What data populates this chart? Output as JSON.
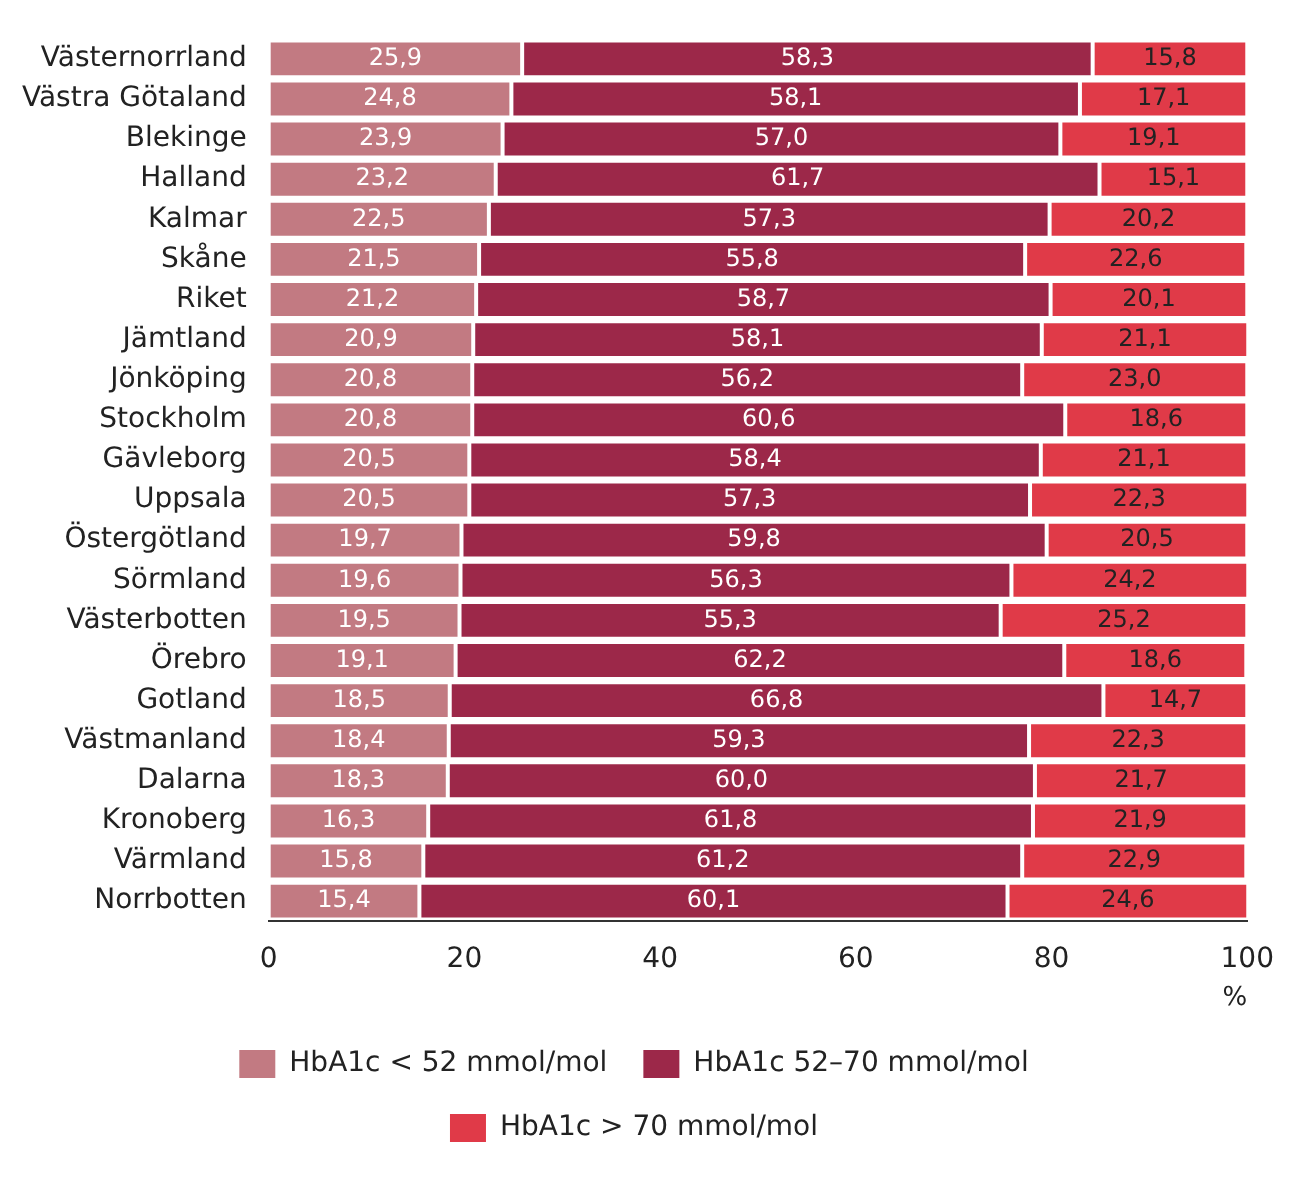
{
  "chart_data": {
    "type": "bar",
    "orientation": "horizontal",
    "stacked": true,
    "xlabel": "%",
    "categories": [
      "Västernorrland",
      "Västra Götaland",
      "Blekinge",
      "Halland",
      "Kalmar",
      "Skåne",
      "Riket",
      "Jämtland",
      "Jönköping",
      "Stockholm",
      "Gävleborg",
      "Uppsala",
      "Östergötland",
      "Sörmland",
      "Västerbotten",
      "Örebro",
      "Gotland",
      "Västmanland",
      "Dalarna",
      "Kronoberg",
      "Värmland",
      "Norrbotten"
    ],
    "series": [
      {
        "name": "HbA1c < 52 mmol/mol",
        "color": "#c27a82",
        "values": [
          25.9,
          24.8,
          23.9,
          23.2,
          22.5,
          21.5,
          21.2,
          20.9,
          20.8,
          20.8,
          20.5,
          20.5,
          19.7,
          19.6,
          19.5,
          19.1,
          18.5,
          18.4,
          18.3,
          16.3,
          15.8,
          15.4
        ],
        "value_labels": [
          "25,9",
          "24,8",
          "23,9",
          "23,2",
          "22,5",
          "21,5",
          "21,2",
          "20,9",
          "20,8",
          "20,8",
          "20,5",
          "20,5",
          "19,7",
          "19,6",
          "19,5",
          "19,1",
          "18,5",
          "18,4",
          "18,3",
          "16,3",
          "15,8",
          "15,4"
        ]
      },
      {
        "name": "HbA1c 52–70 mmol/mol",
        "color": "#9c2849",
        "values": [
          58.3,
          58.1,
          57.0,
          61.7,
          57.3,
          55.8,
          58.7,
          58.1,
          56.2,
          60.6,
          58.4,
          57.3,
          59.8,
          56.3,
          55.3,
          62.2,
          66.8,
          59.3,
          60.0,
          61.8,
          61.2,
          60.1
        ],
        "value_labels": [
          "58,3",
          "58,1",
          "57,0",
          "61,7",
          "57,3",
          "55,8",
          "58,7",
          "58,1",
          "56,2",
          "60,6",
          "58,4",
          "57,3",
          "59,8",
          "56,3",
          "55,3",
          "62,2",
          "66,8",
          "59,3",
          "60,0",
          "61,8",
          "61,2",
          "60,1"
        ]
      },
      {
        "name": "HbA1c > 70 mmol/mol",
        "color": "#e03a48",
        "values": [
          15.8,
          17.1,
          19.1,
          15.1,
          20.2,
          22.6,
          20.1,
          21.1,
          23.0,
          18.6,
          21.1,
          22.3,
          20.5,
          24.2,
          25.2,
          18.6,
          14.7,
          22.3,
          21.7,
          21.9,
          22.9,
          24.6
        ],
        "value_labels": [
          "15,8",
          "17,1",
          "19,1",
          "15,1",
          "20,2",
          "22,6",
          "20,1",
          "21,1",
          "23,0",
          "18,6",
          "21,1",
          "22,3",
          "20,5",
          "24,2",
          "25,2",
          "18,6",
          "14,7",
          "22,3",
          "21,7",
          "21,9",
          "22,9",
          "24,6"
        ]
      }
    ],
    "xlim": [
      0,
      100
    ],
    "xticks": [
      0,
      20,
      40,
      60,
      80,
      100
    ],
    "grid": false,
    "legend": "bottom"
  }
}
